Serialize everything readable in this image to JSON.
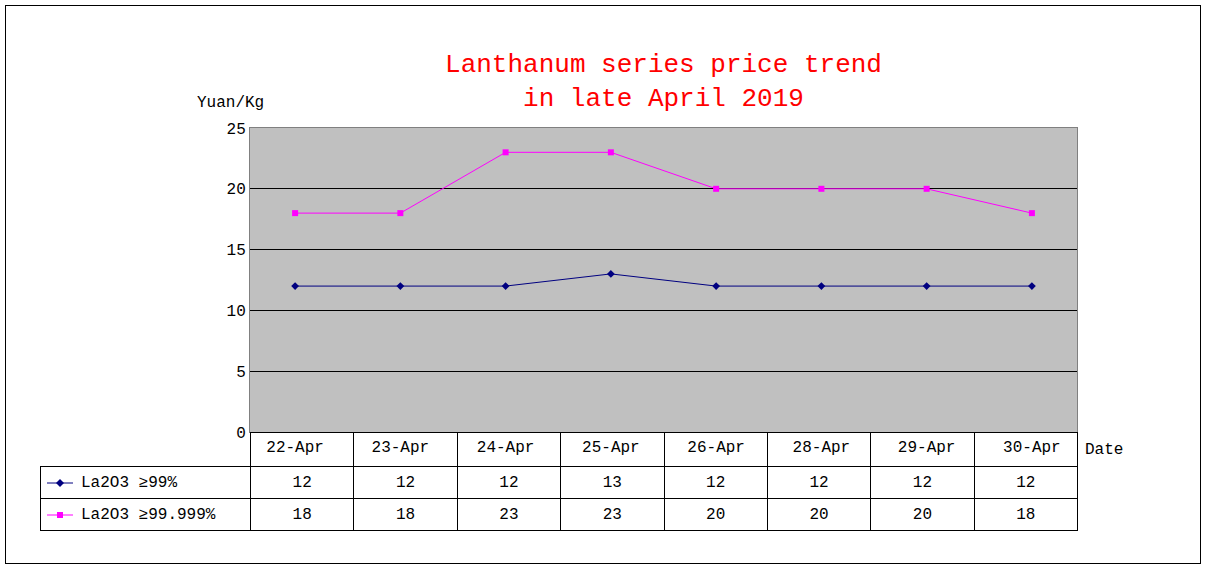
{
  "chart_data": {
    "type": "line",
    "title": "Lanthanum series price trend\nin late April 2019",
    "y_label": "Yuan/Kg",
    "x_label": "Date",
    "categories": [
      "22-Apr",
      "23-Apr",
      "24-Apr",
      "25-Apr",
      "26-Apr",
      "28-Apr",
      "29-Apr",
      "30-Apr"
    ],
    "series": [
      {
        "name": "La2O3 ≥99%",
        "color": "#000080",
        "marker": "diamond",
        "line_style": "solid",
        "values": [
          12,
          12,
          12,
          13,
          12,
          12,
          12,
          12
        ]
      },
      {
        "name": "La2O3 ≥99.999%",
        "color": "#ff00ff",
        "marker": "square",
        "line_style": "solid",
        "values": [
          18,
          18,
          23,
          23,
          20,
          20,
          20,
          18
        ]
      }
    ],
    "ylim": [
      0,
      25
    ],
    "yticks": [
      0,
      5,
      10,
      15,
      20,
      25
    ],
    "grid": true
  }
}
